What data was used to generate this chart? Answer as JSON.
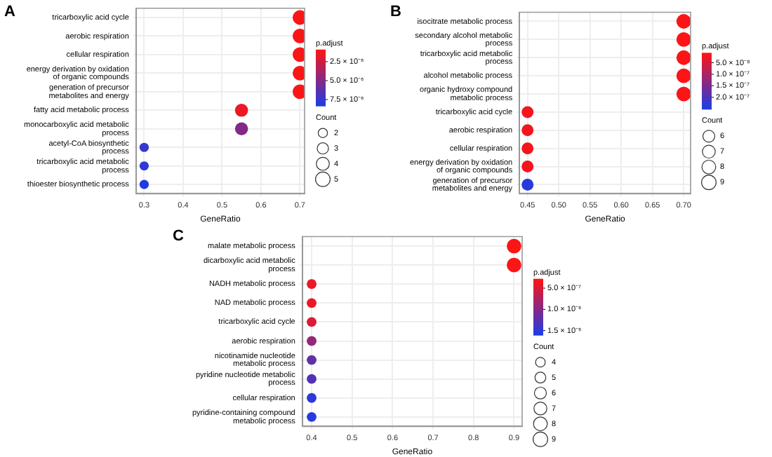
{
  "chart_data": [
    {
      "type": "bubble",
      "orientation": "horizontal",
      "title": "A",
      "xlabel": "GeneRatio",
      "clabel": "p.adjust",
      "legend_title": "Count",
      "grid": true,
      "categories": [
        "tricarboxylic acid cycle",
        "aerobic respiration",
        "cellular respiration",
        "energy derivation by oxidation of organic compounds",
        "generation of precursor metabolites and energy",
        "fatty acid metabolic process",
        "monocarboxylic acid metabolic process",
        "acetyl-CoA biosynthetic process",
        "tricarboxylic acid metabolic process",
        "thioester biosynthetic process"
      ],
      "values": [
        0.7,
        0.7,
        0.7,
        0.7,
        0.7,
        0.55,
        0.55,
        0.3,
        0.3,
        0.3
      ],
      "sizes": [
        5,
        5,
        5,
        5,
        5,
        4,
        4,
        2,
        2,
        2
      ],
      "cvalues": [
        1e-06,
        1e-06,
        1e-06,
        1e-06,
        1e-06,
        1.5e-06,
        5e-06,
        7.5e-06,
        7.8e-06,
        8.2e-06
      ],
      "xlim": [
        0.279,
        0.712
      ],
      "xticks": [
        0.3,
        0.4,
        0.5,
        0.6,
        0.7
      ],
      "clim": [
        9e-07,
        8.3e-06
      ],
      "cticks": [
        {
          "value": 2.5e-06,
          "label": "2.5 × 10⁻⁶"
        },
        {
          "value": 5e-06,
          "label": "5.0 × 10⁻⁶"
        },
        {
          "value": 7.5e-06,
          "label": "7.5 × 10⁻⁶"
        }
      ],
      "size_legend": [
        2,
        3,
        4,
        5
      ]
    },
    {
      "type": "bubble",
      "orientation": "horizontal",
      "title": "B",
      "xlabel": "GeneRatio",
      "clabel": "p.adjust",
      "legend_title": "Count",
      "grid": true,
      "categories": [
        "isocitrate metabolic process",
        "secondary alcohol metabolic process",
        "tricarboxylic acid metabolic process",
        "alcohol metabolic process",
        "organic hydroxy compound metabolic process",
        "tricarboxylic acid cycle",
        "aerobic respiration",
        "cellular respiration",
        "energy derivation by oxidation of organic compounds",
        "generation of precursor metabolites and energy"
      ],
      "values": [
        0.7,
        0.7,
        0.7,
        0.7,
        0.7,
        0.45,
        0.45,
        0.45,
        0.45,
        0.45
      ],
      "sizes": [
        9,
        9,
        9,
        9,
        9,
        6,
        6,
        6,
        6,
        6
      ],
      "cvalues": [
        1e-08,
        1e-08,
        1e-08,
        1e-08,
        1e-08,
        2e-08,
        2e-08,
        2e-08,
        2e-08,
        2.4e-07
      ],
      "xlim": [
        0.437,
        0.711
      ],
      "xticks": [
        {
          "value": 0.45,
          "label": "0.45"
        },
        {
          "value": 0.5,
          "label": "0.50"
        },
        {
          "value": 0.55,
          "label": "0.55"
        },
        {
          "value": 0.6,
          "label": "0.60"
        },
        {
          "value": 0.65,
          "label": "0.65"
        },
        {
          "value": 0.7,
          "label": "0.70"
        }
      ],
      "clim": [
        7e-09,
        2.5e-07
      ],
      "cticks": [
        {
          "value": 5e-08,
          "label": "5.0 × 10⁻⁸"
        },
        {
          "value": 1e-07,
          "label": "1.0 × 10⁻⁷"
        },
        {
          "value": 1.5e-07,
          "label": "1.5 × 10⁻⁷"
        },
        {
          "value": 2e-07,
          "label": "2.0 × 10⁻⁷"
        }
      ],
      "size_legend": [
        6,
        7,
        8,
        9
      ]
    },
    {
      "type": "bubble",
      "orientation": "horizontal",
      "title": "C",
      "xlabel": "GeneRatio",
      "clabel": "p.adjust",
      "legend_title": "Count",
      "grid": true,
      "categories": [
        "malate metabolic process",
        "dicarboxylic acid metabolic process",
        "NADH metabolic process",
        "NAD metabolic process",
        "tricarboxylic acid cycle",
        "aerobic respiration",
        "nicotinamide nucleotide metabolic process",
        "pyridine nucleotide metabolic process",
        "cellular respiration",
        "pyridine-containing compound metabolic process"
      ],
      "values": [
        0.9,
        0.9,
        0.4,
        0.4,
        0.4,
        0.4,
        0.4,
        0.4,
        0.4,
        0.4
      ],
      "sizes": [
        9,
        9,
        4,
        4,
        4,
        4,
        4,
        4,
        4,
        4
      ],
      "cvalues": [
        3e-07,
        3e-07,
        4e-07,
        4e-07,
        5e-07,
        9e-07,
        1.2e-06,
        1.3e-06,
        1.5e-06,
        1.55e-06
      ],
      "xlim": [
        0.377,
        0.92
      ],
      "xticks": [
        0.4,
        0.5,
        0.6,
        0.7,
        0.8,
        0.9
      ],
      "clim": [
        2.8e-07,
        1.6e-06
      ],
      "cticks": [
        {
          "value": 5e-07,
          "label": "5.0 × 10⁻⁷"
        },
        {
          "value": 1e-06,
          "label": "1.0 × 10⁻⁶"
        },
        {
          "value": 1.5e-06,
          "label": "1.5 × 10⁻⁶"
        }
      ],
      "size_legend": [
        4,
        5,
        6,
        7,
        8,
        9
      ]
    }
  ]
}
